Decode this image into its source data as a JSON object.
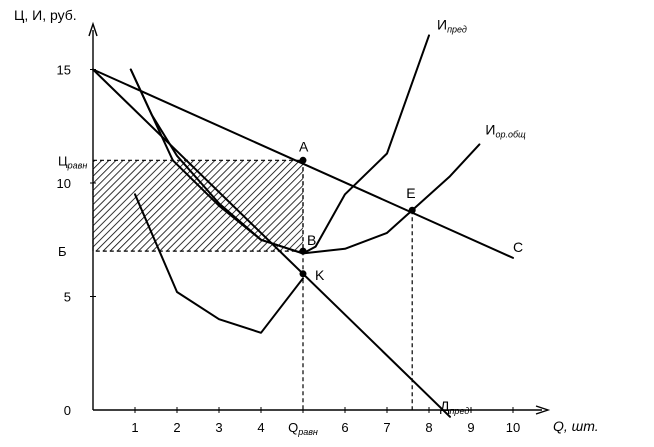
{
  "chart_data": {
    "type": "line",
    "title": "",
    "ylabel": "Ц, И, руб.",
    "xlabel": "Q, шт.",
    "xlim": [
      0,
      10.5
    ],
    "ylim": [
      0,
      17.5
    ],
    "x_ticks": [
      "1",
      "2",
      "3",
      "4",
      "5",
      "6",
      "7",
      "8",
      "9",
      "10"
    ],
    "x_tick_values": [
      1,
      2,
      3,
      4,
      5,
      6,
      7,
      8,
      9,
      10
    ],
    "x_special_tick": {
      "x": 5,
      "main": "Q",
      "sub": "равн"
    },
    "y_ticks": [
      "0",
      "5",
      "10",
      "15"
    ],
    "y_tick_values": [
      0,
      5,
      10,
      15
    ],
    "y_special_ticks": [
      {
        "y": 11,
        "main": "Ц",
        "sub": "равн"
      },
      {
        "y": 7,
        "main": "Б",
        "sub": ""
      }
    ],
    "series": [
      {
        "name": "С",
        "name_sub": "",
        "points": [
          [
            0,
            15
          ],
          [
            10,
            6.7
          ]
        ]
      },
      {
        "name": "Д",
        "name_sub": "пред",
        "points": [
          [
            0,
            15
          ],
          [
            8.5,
            -0.3
          ]
        ]
      },
      {
        "name": "И",
        "name_sub": "пред",
        "points": [
          [
            0.9,
            15
          ],
          [
            1.9,
            11
          ],
          [
            3,
            9
          ],
          [
            4,
            7.5
          ],
          [
            5,
            6.9
          ],
          [
            5.3,
            7.2
          ],
          [
            6,
            9.5
          ],
          [
            7,
            11.3
          ],
          [
            8,
            16.5
          ]
        ]
      },
      {
        "name": "И",
        "name_sub": "ор.общ",
        "points": [
          [
            0.9,
            15
          ],
          [
            1.4,
            13
          ],
          [
            2,
            11.2
          ],
          [
            3,
            9.1
          ],
          [
            4,
            7.5
          ],
          [
            5,
            6.9
          ],
          [
            6,
            7.1
          ],
          [
            7,
            7.8
          ],
          [
            7.6,
            8.8
          ],
          [
            8.5,
            10.3
          ],
          [
            9.2,
            11.7
          ]
        ]
      },
      {
        "name": "",
        "name_sub": "",
        "points": [
          [
            1,
            9.5
          ],
          [
            2,
            5.2
          ],
          [
            3,
            4
          ],
          [
            4,
            3.4
          ],
          [
            5,
            5.8
          ]
        ]
      }
    ],
    "points": [
      {
        "label": "A",
        "x": 5,
        "y": 11
      },
      {
        "label": "B",
        "x": 5,
        "y": 7
      },
      {
        "label": "K",
        "x": 5,
        "y": 6
      },
      {
        "label": "E",
        "x": 7.6,
        "y": 8.8
      }
    ],
    "shaded_region": {
      "x": [
        0,
        5
      ],
      "y": [
        7,
        11
      ]
    }
  }
}
